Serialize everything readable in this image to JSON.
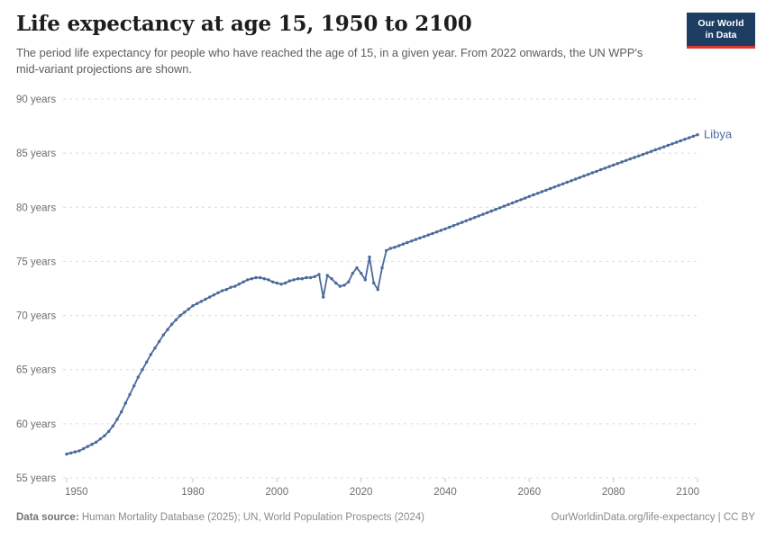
{
  "header": {
    "title": "Life expectancy at age 15, 1950 to 2100",
    "subtitle": "The period life expectancy for people who have reached the age of 15, in a given year. From 2022 onwards, the UN WPP's mid-variant projections are shown.",
    "logo": {
      "line1": "Our World",
      "line2": "in Data",
      "bg_color": "#1d3d63",
      "accent_color": "#d73831"
    }
  },
  "chart_data": {
    "type": "line",
    "title": "Life expectancy at age 15, 1950 to 2100",
    "xlabel": "",
    "ylabel": "",
    "xlim": [
      1950,
      2100
    ],
    "ylim": [
      55,
      90
    ],
    "grid": "horizontal-dashed",
    "gridline_color": "#dcdcdc",
    "tick_color": "#c9c9c9",
    "x_ticks": [
      1950,
      1980,
      2000,
      2020,
      2040,
      2060,
      2080,
      2100
    ],
    "y_ticks": [
      {
        "value": 55,
        "label": "55 years"
      },
      {
        "value": 60,
        "label": "60 years"
      },
      {
        "value": 65,
        "label": "65 years"
      },
      {
        "value": 70,
        "label": "70 years"
      },
      {
        "value": 75,
        "label": "75 years"
      },
      {
        "value": 80,
        "label": "80 years"
      },
      {
        "value": 85,
        "label": "85 years"
      },
      {
        "value": 90,
        "label": "90 years"
      }
    ],
    "legend_position": "end-of-line-label",
    "series": [
      {
        "name": "Libya",
        "end_label": "Libya",
        "color": "#4c6a9c",
        "marker": "dot",
        "x": {
          "start": 1950,
          "end": 2100,
          "step": 1
        },
        "y": [
          57.2,
          57.3,
          57.4,
          57.5,
          57.7,
          57.9,
          58.1,
          58.3,
          58.6,
          58.9,
          59.3,
          59.8,
          60.4,
          61.1,
          61.9,
          62.7,
          63.5,
          64.3,
          65.0,
          65.7,
          66.4,
          67.0,
          67.6,
          68.2,
          68.7,
          69.2,
          69.6,
          70.0,
          70.3,
          70.6,
          70.9,
          71.1,
          71.3,
          71.5,
          71.7,
          71.9,
          72.1,
          72.3,
          72.4,
          72.6,
          72.7,
          72.9,
          73.1,
          73.3,
          73.4,
          73.5,
          73.5,
          73.4,
          73.3,
          73.1,
          73.0,
          72.9,
          73.0,
          73.2,
          73.3,
          73.4,
          73.4,
          73.5,
          73.5,
          73.6,
          73.8,
          71.7,
          73.7,
          73.4,
          73.0,
          72.7,
          72.8,
          73.1,
          73.9,
          74.4,
          73.9,
          73.3,
          75.4,
          73.0,
          72.4,
          74.4,
          76.0,
          76.2,
          76.3,
          76.45,
          76.6,
          76.74,
          76.88,
          77.02,
          77.16,
          77.3,
          77.44,
          77.58,
          77.72,
          77.86,
          78.0,
          78.15,
          78.3,
          78.45,
          78.6,
          78.75,
          78.9,
          79.05,
          79.2,
          79.35,
          79.5,
          79.65,
          79.8,
          79.95,
          80.1,
          80.25,
          80.4,
          80.55,
          80.7,
          80.85,
          81.0,
          81.15,
          81.29,
          81.44,
          81.58,
          81.73,
          81.87,
          82.02,
          82.16,
          82.31,
          82.45,
          82.6,
          82.74,
          82.89,
          83.03,
          83.18,
          83.32,
          83.47,
          83.61,
          83.76,
          83.9,
          84.04,
          84.18,
          84.32,
          84.46,
          84.6,
          84.74,
          84.88,
          85.02,
          85.16,
          85.3,
          85.44,
          85.58,
          85.72,
          85.86,
          86.0,
          86.14,
          86.28,
          86.42,
          86.56,
          86.7
        ]
      }
    ],
    "annotations": {
      "projection_start_year": 2022
    }
  },
  "footer": {
    "source_label": "Data source:",
    "source_text": " Human Mortality Database (2025); UN, World Population Prospects (2024)",
    "link_text": "OurWorldinData.org/life-expectancy | CC BY"
  }
}
